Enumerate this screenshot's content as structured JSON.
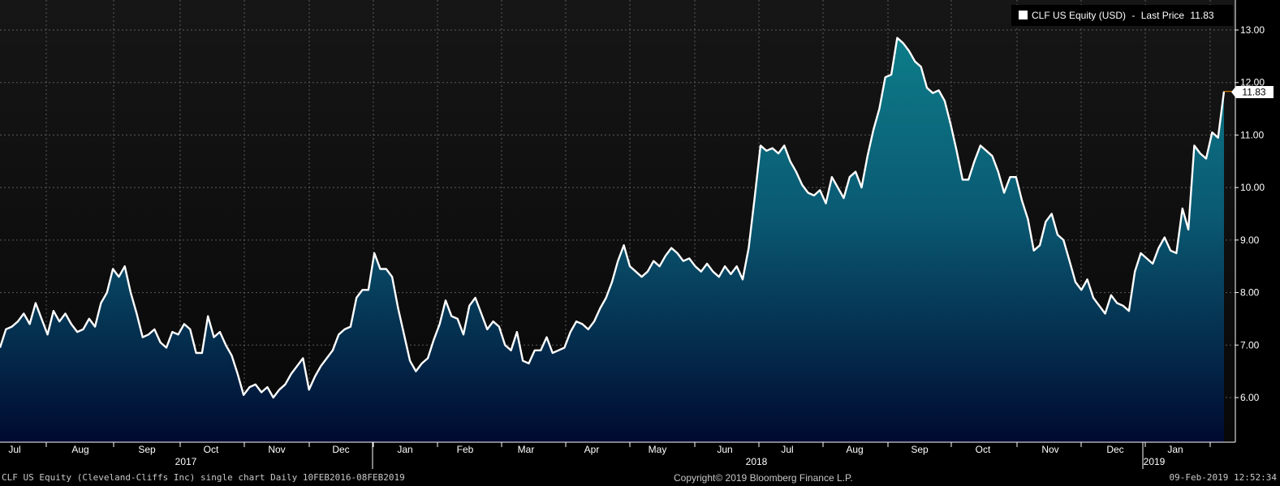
{
  "legend": {
    "series_label": "CLF US Equity (USD)",
    "separator": "-",
    "price_label": "Last Price",
    "price_value": "11.83"
  },
  "last_price_tag": "11.83",
  "footer": {
    "left": "CLF US Equity (Cleveland-Cliffs Inc) single chart  Daily 10FEB2016-08FEB2019",
    "center": "Copyright© 2019 Bloomberg Finance L.P.",
    "right": "09-Feb-2019 12:52:34"
  },
  "colors": {
    "background_top": "#161616",
    "area_top": "#0d7f8a",
    "area_bottom": "#000a30",
    "line": "#ffffff",
    "grid": "#5a5a5a",
    "last_price_line": "#ff8a00"
  },
  "chart_data": {
    "type": "area",
    "title": "",
    "xlabel": "",
    "ylabel": "",
    "ylim": [
      5,
      13.2
    ],
    "yticks": [
      "6.00",
      "7.00",
      "8.00",
      "9.00",
      "10.00",
      "11.00",
      "12.00",
      "13.00"
    ],
    "grid": true,
    "legend_position": "top-right",
    "x_month_labels": [
      "Jul",
      "Aug",
      "Sep",
      "Oct",
      "Nov",
      "Dec",
      "Jan",
      "Feb",
      "Mar",
      "Apr",
      "May",
      "Jun",
      "Jul",
      "Aug",
      "Sep",
      "Oct",
      "Nov",
      "Dec",
      "Jan"
    ],
    "x_year_labels": [
      "2017",
      "2018",
      "2019"
    ],
    "series": [
      {
        "name": "CLF US Equity (USD) - Last Price",
        "values": [
          6.95,
          7.3,
          7.35,
          7.45,
          7.6,
          7.4,
          7.8,
          7.5,
          7.2,
          7.65,
          7.45,
          7.6,
          7.4,
          7.25,
          7.3,
          7.5,
          7.35,
          7.8,
          8.0,
          8.45,
          8.3,
          8.5,
          8.0,
          7.6,
          7.15,
          7.2,
          7.3,
          7.05,
          6.95,
          7.25,
          7.2,
          7.4,
          7.3,
          6.85,
          6.85,
          7.55,
          7.15,
          7.25,
          7.0,
          6.8,
          6.45,
          6.05,
          6.2,
          6.25,
          6.1,
          6.2,
          6.0,
          6.15,
          6.25,
          6.45,
          6.6,
          6.75,
          6.15,
          6.4,
          6.6,
          6.75,
          6.9,
          7.2,
          7.3,
          7.35,
          7.9,
          8.05,
          8.05,
          8.75,
          8.45,
          8.45,
          8.3,
          7.7,
          7.2,
          6.7,
          6.5,
          6.65,
          6.75,
          7.1,
          7.4,
          7.85,
          7.55,
          7.5,
          7.2,
          7.75,
          7.9,
          7.6,
          7.3,
          7.45,
          7.35,
          7.0,
          6.9,
          7.25,
          6.7,
          6.65,
          6.9,
          6.9,
          7.15,
          6.85,
          6.9,
          6.95,
          7.25,
          7.45,
          7.4,
          7.3,
          7.45,
          7.7,
          7.9,
          8.2,
          8.6,
          8.9,
          8.5,
          8.4,
          8.3,
          8.4,
          8.6,
          8.5,
          8.7,
          8.85,
          8.75,
          8.6,
          8.65,
          8.5,
          8.4,
          8.55,
          8.4,
          8.3,
          8.5,
          8.35,
          8.5,
          8.25,
          8.85,
          9.8,
          10.8,
          10.7,
          10.75,
          10.65,
          10.8,
          10.5,
          10.3,
          10.05,
          9.9,
          9.85,
          9.95,
          9.7,
          10.2,
          10.0,
          9.8,
          10.2,
          10.3,
          10.0,
          10.6,
          11.1,
          11.5,
          12.1,
          12.15,
          12.85,
          12.75,
          12.6,
          12.4,
          12.3,
          11.9,
          11.8,
          11.85,
          11.65,
          11.2,
          10.7,
          10.15,
          10.15,
          10.5,
          10.8,
          10.7,
          10.6,
          10.3,
          9.9,
          10.2,
          10.2,
          9.75,
          9.4,
          8.8,
          8.9,
          9.35,
          9.5,
          9.1,
          9.0,
          8.6,
          8.2,
          8.05,
          8.25,
          7.9,
          7.75,
          7.6,
          7.95,
          7.8,
          7.75,
          7.65,
          8.4,
          8.75,
          8.65,
          8.55,
          8.85,
          9.05,
          8.8,
          8.75,
          9.6,
          9.2,
          10.8,
          10.65,
          10.55,
          11.05,
          10.95,
          11.83
        ]
      }
    ]
  }
}
